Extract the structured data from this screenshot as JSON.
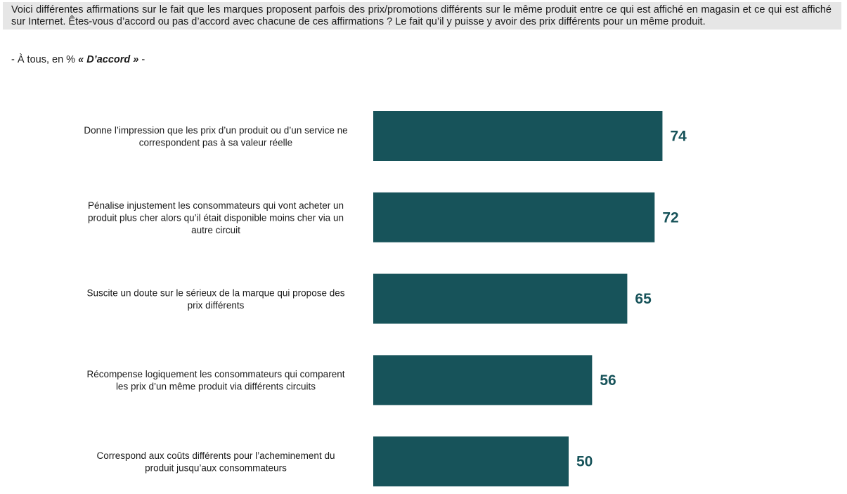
{
  "question": "Voici différentes affirmations sur le fait que les marques proposent parfois des prix/promotions différents sur le même produit entre ce qui est affiché en magasin et ce qui est affiché sur Internet. Êtes-vous d’accord ou pas d’accord avec chacune de ces affirmations ? Le fait qu’il y puisse y avoir des prix différents pour un même produit.",
  "base": {
    "prefix": "- À tous, en %",
    "emphasis": "« D’accord »",
    "suffix": "-"
  },
  "colors": {
    "bar": "#17535a",
    "value_text": "#17535a",
    "header_bg": "#e6e6e6"
  },
  "chart_data": {
    "type": "bar",
    "orientation": "horizontal",
    "categories": [
      [
        "Donne l’impression que les prix d’un produit ou d’un service ne",
        "correspondent pas à sa valeur réelle"
      ],
      [
        "Pénalise injustement les consommateurs qui vont acheter un",
        "produit plus cher alors qu’il était disponible moins cher via un",
        "autre circuit"
      ],
      [
        "Suscite un doute sur le sérieux de la marque qui propose des",
        "prix différents"
      ],
      [
        "Récompense logiquement les consommateurs qui comparent",
        "les prix d’un même produit via différents circuits"
      ],
      [
        "Correspond aux coûts différents pour l’acheminement du",
        "produit jusqu’aux consommateurs"
      ]
    ],
    "values": [
      74,
      72,
      65,
      56,
      50
    ],
    "xlim": [
      0,
      100
    ],
    "grid": false,
    "legend": "none"
  }
}
